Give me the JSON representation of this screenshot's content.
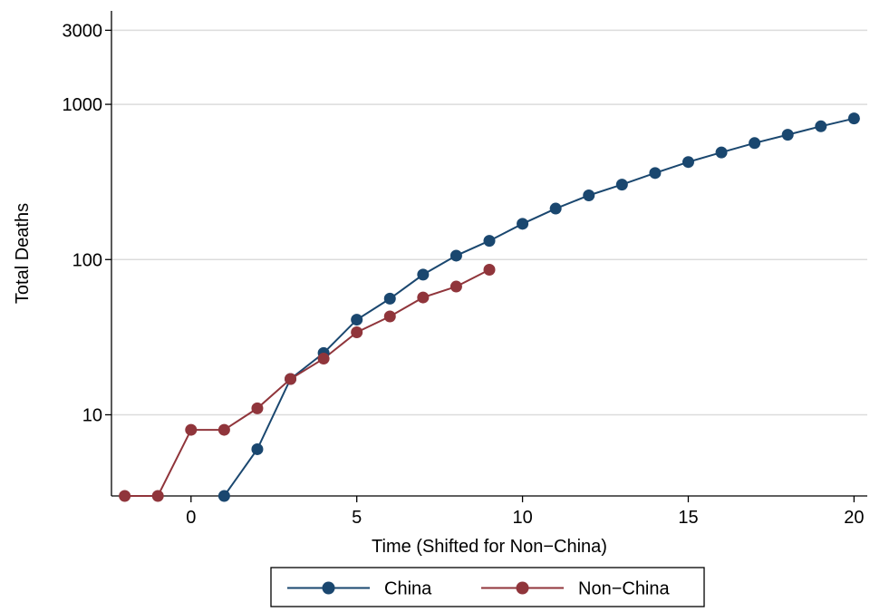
{
  "chart_data": {
    "type": "line",
    "xlabel": "Time (Shifted for Non−China)",
    "ylabel": "Total Deaths",
    "xlim": [
      -2.4,
      20.4
    ],
    "ylim": [
      3,
      4000
    ],
    "yscale": "log",
    "xticks": [
      0,
      5,
      10,
      15,
      20
    ],
    "xtick_labels": [
      "0",
      "5",
      "10",
      "15",
      "20"
    ],
    "yticks": [
      10,
      100,
      1000,
      3000
    ],
    "ytick_labels": [
      "10",
      "100",
      "1000",
      "3000"
    ],
    "grid": "horizontal",
    "legend_position": "bottom",
    "series": [
      {
        "name": "China",
        "color": "#1a476f",
        "x": [
          1,
          2,
          3,
          4,
          5,
          6,
          7,
          8,
          9,
          10,
          11,
          12,
          13,
          14,
          15,
          16,
          17,
          18,
          19,
          20
        ],
        "values": [
          3,
          6,
          17,
          25,
          41,
          56,
          80,
          106,
          132,
          170,
          213,
          259,
          304,
          361,
          425,
          490,
          563,
          637,
          722,
          811
        ]
      },
      {
        "name": "Non−China",
        "color": "#90353b",
        "x": [
          -2,
          -1,
          0,
          1,
          2,
          3,
          4,
          5,
          6,
          7,
          8,
          9
        ],
        "values": [
          3,
          3,
          8,
          8,
          11,
          17,
          23,
          34,
          43,
          57,
          67,
          86
        ]
      }
    ]
  }
}
